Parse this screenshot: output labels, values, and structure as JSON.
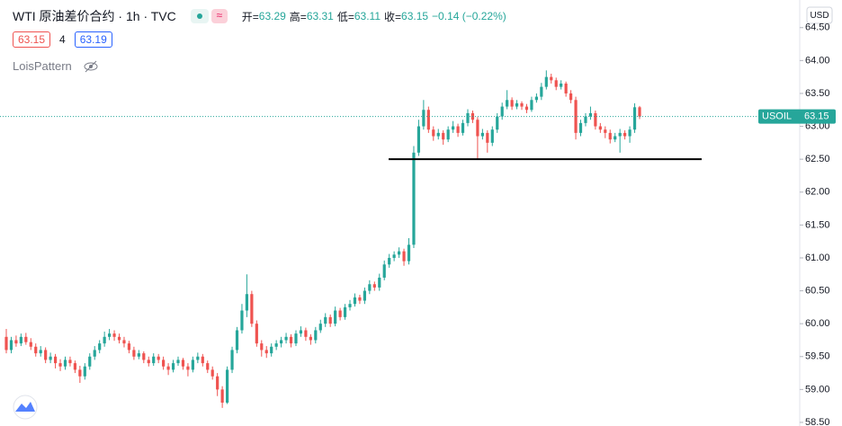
{
  "chart_data": {
    "type": "candlestick",
    "title": "WTI 原油差价合约 · 1h · TVC",
    "legend_fields": [
      {
        "label": "开=",
        "value": 63.29
      },
      {
        "label": "高=",
        "value": 63.31
      },
      {
        "label": "低=",
        "value": 63.11
      },
      {
        "label": "收=",
        "value": 63.15
      }
    ],
    "change": "−0.14 (−0.22%)",
    "sell_price": 63.15,
    "spread": 4,
    "buy_price": 63.19,
    "indicator": "LoisPattern",
    "currency": "USD",
    "symbol": "USOIL",
    "last_price": {
      "value": 63.15,
      "label": "63.15"
    },
    "support_line": 62.5,
    "up_color": "#26a69a",
    "down_color": "#ef5350",
    "ylim": [
      58.445,
      64.92
    ],
    "yticks": [
      {
        "value": 58.5,
        "label": "58.50"
      },
      {
        "value": 59,
        "label": "59.00"
      },
      {
        "value": 59.5,
        "label": "59.50"
      },
      {
        "value": 60,
        "label": "60.00"
      },
      {
        "value": 60.5,
        "label": "60.50"
      },
      {
        "value": 61,
        "label": "61.00"
      },
      {
        "value": 61.5,
        "label": "61.50"
      },
      {
        "value": 62,
        "label": "62.00"
      },
      {
        "value": 62.5,
        "label": "62.50"
      },
      {
        "value": 63,
        "label": "63.00"
      },
      {
        "value": 63.5,
        "label": "63.50"
      },
      {
        "value": 64,
        "label": "64.00"
      },
      {
        "value": 64.5,
        "label": "64.50"
      }
    ],
    "ohlc": [
      [
        59.8,
        59.92,
        59.55,
        59.6
      ],
      [
        59.6,
        59.8,
        59.55,
        59.75
      ],
      [
        59.75,
        59.82,
        59.65,
        59.7
      ],
      [
        59.7,
        59.85,
        59.66,
        59.8
      ],
      [
        59.8,
        59.86,
        59.68,
        59.72
      ],
      [
        59.72,
        59.78,
        59.6,
        59.65
      ],
      [
        59.65,
        59.7,
        59.5,
        59.55
      ],
      [
        59.55,
        59.66,
        59.5,
        59.6
      ],
      [
        59.6,
        59.64,
        59.4,
        59.45
      ],
      [
        59.45,
        59.56,
        59.4,
        59.5
      ],
      [
        59.5,
        59.54,
        59.32,
        59.4
      ],
      [
        59.4,
        59.46,
        59.28,
        59.35
      ],
      [
        59.35,
        59.5,
        59.3,
        59.45
      ],
      [
        59.45,
        59.5,
        59.35,
        59.4
      ],
      [
        59.4,
        59.44,
        59.25,
        59.3
      ],
      [
        59.3,
        59.36,
        59.1,
        59.2
      ],
      [
        59.2,
        59.4,
        59.15,
        59.35
      ],
      [
        59.35,
        59.55,
        59.3,
        59.5
      ],
      [
        59.5,
        59.66,
        59.45,
        59.6
      ],
      [
        59.6,
        59.75,
        59.55,
        59.7
      ],
      [
        59.7,
        59.88,
        59.65,
        59.8
      ],
      [
        59.8,
        59.92,
        59.75,
        59.85
      ],
      [
        59.85,
        59.9,
        59.74,
        59.8
      ],
      [
        59.8,
        59.85,
        59.7,
        59.75
      ],
      [
        59.75,
        59.8,
        59.64,
        59.7
      ],
      [
        59.7,
        59.74,
        59.55,
        59.6
      ],
      [
        59.6,
        59.65,
        59.45,
        59.5
      ],
      [
        59.5,
        59.6,
        59.46,
        59.55
      ],
      [
        59.55,
        59.58,
        59.4,
        59.45
      ],
      [
        59.45,
        59.5,
        59.35,
        59.4
      ],
      [
        59.4,
        59.55,
        59.36,
        59.5
      ],
      [
        59.5,
        59.54,
        59.4,
        59.45
      ],
      [
        59.45,
        59.5,
        59.3,
        59.35
      ],
      [
        59.35,
        59.4,
        59.22,
        59.3
      ],
      [
        59.3,
        59.45,
        59.26,
        59.4
      ],
      [
        59.4,
        59.5,
        59.36,
        59.45
      ],
      [
        59.45,
        59.48,
        59.3,
        59.35
      ],
      [
        59.35,
        59.4,
        59.2,
        59.3
      ],
      [
        59.3,
        59.5,
        59.26,
        59.45
      ],
      [
        59.45,
        59.56,
        59.4,
        59.5
      ],
      [
        59.5,
        59.54,
        59.35,
        59.4
      ],
      [
        59.4,
        59.44,
        59.25,
        59.3
      ],
      [
        59.3,
        59.35,
        59.15,
        59.2
      ],
      [
        59.2,
        59.25,
        58.9,
        59.0
      ],
      [
        59.0,
        59.05,
        58.72,
        58.8
      ],
      [
        58.8,
        59.35,
        58.78,
        59.3
      ],
      [
        59.3,
        59.65,
        59.25,
        59.6
      ],
      [
        59.6,
        59.95,
        59.55,
        59.9
      ],
      [
        59.9,
        60.3,
        59.85,
        60.2
      ],
      [
        60.2,
        60.75,
        60.1,
        60.45
      ],
      [
        60.45,
        60.5,
        59.95,
        60.0
      ],
      [
        60.0,
        60.05,
        59.65,
        59.7
      ],
      [
        59.7,
        59.75,
        59.5,
        59.6
      ],
      [
        59.6,
        59.66,
        59.48,
        59.55
      ],
      [
        59.55,
        59.7,
        59.5,
        59.65
      ],
      [
        59.65,
        59.75,
        59.6,
        59.7
      ],
      [
        59.7,
        59.8,
        59.64,
        59.75
      ],
      [
        59.75,
        59.86,
        59.7,
        59.8
      ],
      [
        59.8,
        59.84,
        59.64,
        59.7
      ],
      [
        59.7,
        59.9,
        59.66,
        59.85
      ],
      [
        59.85,
        59.96,
        59.8,
        59.9
      ],
      [
        59.9,
        59.94,
        59.74,
        59.8
      ],
      [
        59.8,
        59.84,
        59.68,
        59.75
      ],
      [
        59.75,
        59.95,
        59.7,
        59.9
      ],
      [
        59.9,
        60.06,
        59.86,
        60.0
      ],
      [
        60.0,
        60.16,
        59.95,
        60.1
      ],
      [
        60.1,
        60.14,
        59.95,
        60.0
      ],
      [
        60.0,
        60.26,
        59.96,
        60.2
      ],
      [
        60.2,
        60.24,
        60.05,
        60.1
      ],
      [
        60.1,
        60.3,
        60.06,
        60.25
      ],
      [
        60.25,
        60.36,
        60.2,
        60.3
      ],
      [
        60.3,
        60.46,
        60.26,
        60.4
      ],
      [
        60.4,
        60.44,
        60.3,
        60.35
      ],
      [
        60.35,
        60.55,
        60.3,
        60.5
      ],
      [
        60.5,
        60.66,
        60.45,
        60.6
      ],
      [
        60.6,
        60.64,
        60.5,
        60.55
      ],
      [
        60.55,
        60.76,
        60.5,
        60.7
      ],
      [
        60.7,
        60.96,
        60.66,
        60.9
      ],
      [
        60.9,
        61.06,
        60.85,
        61.0
      ],
      [
        61.0,
        61.1,
        60.95,
        61.05
      ],
      [
        61.05,
        61.16,
        61.0,
        61.1
      ],
      [
        61.1,
        61.14,
        60.88,
        60.95
      ],
      [
        60.95,
        61.3,
        60.9,
        61.2
      ],
      [
        61.2,
        62.7,
        61.15,
        62.6
      ],
      [
        62.6,
        63.1,
        62.55,
        63.0
      ],
      [
        63.0,
        63.4,
        62.95,
        63.25
      ],
      [
        63.25,
        63.3,
        62.9,
        62.95
      ],
      [
        62.95,
        63.0,
        62.78,
        62.85
      ],
      [
        62.85,
        62.96,
        62.8,
        62.9
      ],
      [
        62.9,
        62.94,
        62.72,
        62.8
      ],
      [
        62.8,
        63.0,
        62.76,
        62.95
      ],
      [
        62.95,
        63.08,
        62.9,
        63.0
      ],
      [
        63.0,
        63.04,
        62.84,
        62.9
      ],
      [
        62.9,
        63.1,
        62.86,
        63.05
      ],
      [
        63.05,
        63.26,
        63.0,
        63.2
      ],
      [
        63.2,
        63.24,
        63.05,
        63.1
      ],
      [
        63.1,
        63.14,
        62.5,
        62.85
      ],
      [
        62.85,
        62.96,
        62.8,
        62.9
      ],
      [
        62.9,
        62.94,
        62.6,
        62.75
      ],
      [
        62.75,
        63.0,
        62.7,
        62.95
      ],
      [
        62.95,
        63.2,
        62.9,
        63.15
      ],
      [
        63.15,
        63.36,
        63.1,
        63.3
      ],
      [
        63.3,
        63.55,
        63.26,
        63.4
      ],
      [
        63.4,
        63.44,
        63.25,
        63.3
      ],
      [
        63.3,
        63.4,
        63.26,
        63.35
      ],
      [
        63.35,
        63.38,
        63.25,
        63.3
      ],
      [
        63.3,
        63.34,
        63.2,
        63.25
      ],
      [
        63.25,
        63.45,
        63.22,
        63.4
      ],
      [
        63.4,
        63.5,
        63.36,
        63.45
      ],
      [
        63.45,
        63.66,
        63.4,
        63.6
      ],
      [
        63.6,
        63.85,
        63.56,
        63.75
      ],
      [
        63.75,
        63.8,
        63.65,
        63.7
      ],
      [
        63.7,
        63.74,
        63.55,
        63.6
      ],
      [
        63.6,
        63.7,
        63.56,
        63.65
      ],
      [
        63.65,
        63.68,
        63.45,
        63.5
      ],
      [
        63.5,
        63.55,
        63.35,
        63.4
      ],
      [
        63.4,
        63.45,
        62.8,
        62.9
      ],
      [
        62.9,
        63.1,
        62.85,
        63.05
      ],
      [
        63.05,
        63.2,
        63.0,
        63.15
      ],
      [
        63.15,
        63.3,
        63.1,
        63.2
      ],
      [
        63.2,
        63.24,
        62.95,
        63.0
      ],
      [
        63.0,
        63.05,
        62.9,
        62.95
      ],
      [
        62.95,
        63.0,
        62.82,
        62.9
      ],
      [
        62.9,
        62.95,
        62.74,
        62.8
      ],
      [
        62.8,
        62.9,
        62.76,
        62.85
      ],
      [
        62.85,
        62.96,
        62.6,
        62.9
      ],
      [
        62.9,
        62.94,
        62.8,
        62.85
      ],
      [
        62.85,
        63.0,
        62.75,
        62.95
      ],
      [
        62.95,
        63.35,
        62.9,
        63.29
      ],
      [
        63.29,
        63.31,
        63.11,
        63.15
      ]
    ]
  }
}
